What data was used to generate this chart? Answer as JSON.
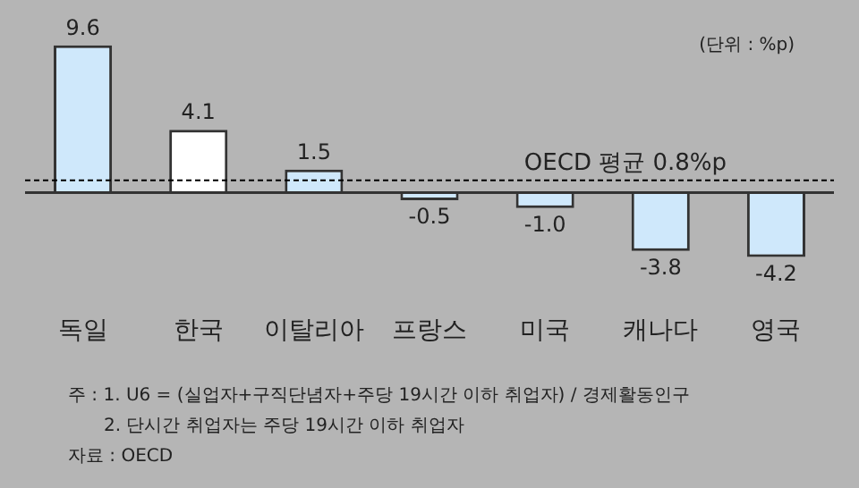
{
  "chart_data": {
    "type": "bar",
    "categories": [
      "독일",
      "한국",
      "이탈리아",
      "프랑스",
      "미국",
      "캐나다",
      "영국"
    ],
    "values": [
      9.6,
      4.1,
      1.5,
      -0.5,
      -1.0,
      -3.8,
      -4.2
    ],
    "colors": [
      "#cfe8fb",
      "#ffffff",
      "#cfe8fb",
      "#cfe8fb",
      "#cfe8fb",
      "#cfe8fb",
      "#cfe8fb"
    ],
    "value_labels": [
      "9.6",
      "4.1",
      "1.5",
      "-0.5",
      "-1.0",
      "-3.8",
      "-4.2"
    ],
    "ref_lines": [
      {
        "axis": "y",
        "value": 0.8,
        "label": "OECD 평균 0.8%p",
        "line_style": "dashed",
        "color": "#000000"
      }
    ],
    "annotations": [
      "(단위 : %p)",
      "주 : 1. U6 = (실업자+구직단념자+주당 19시간 이하 취업자) / 경제활동인구",
      "2. 단시간 취업자는 주당 19시간 이하 취업자",
      "자료 : OECD"
    ],
    "grid": false,
    "legend": false
  }
}
